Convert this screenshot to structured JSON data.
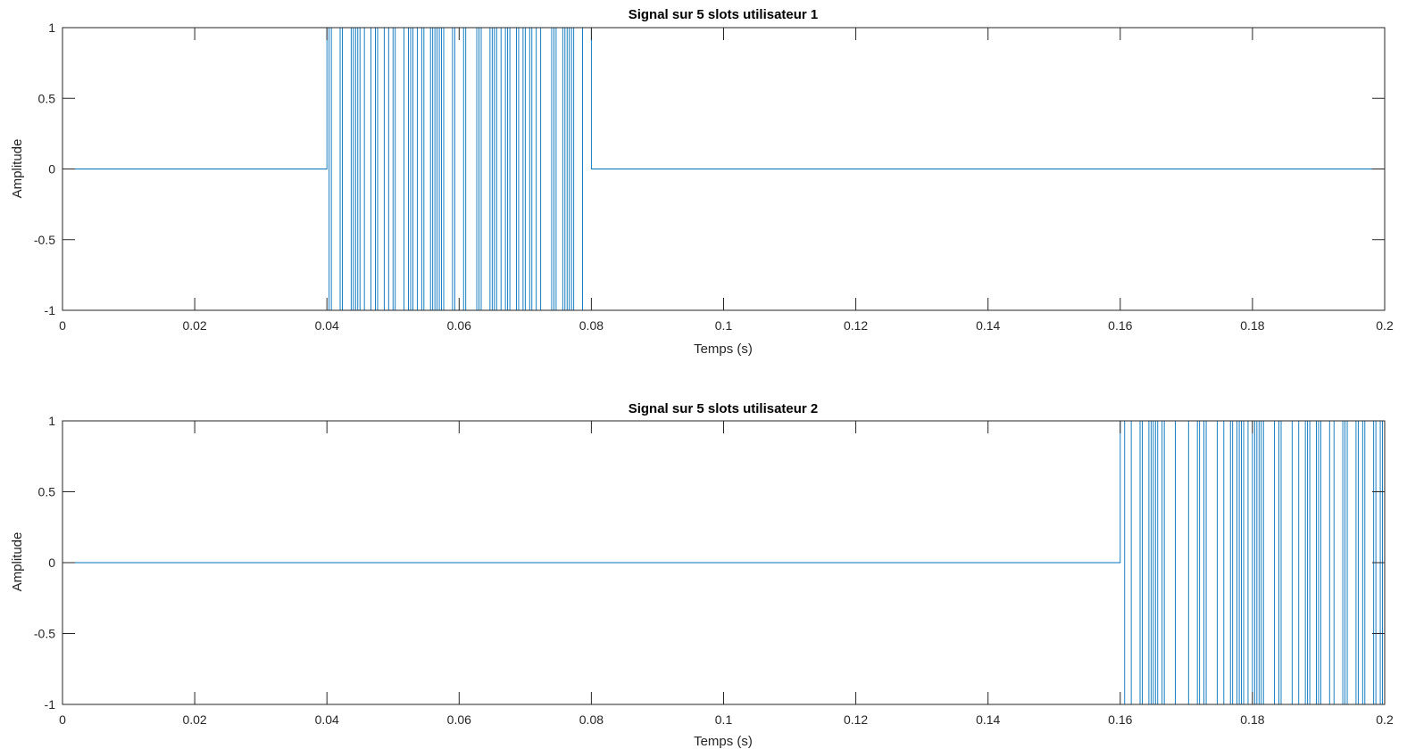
{
  "chart_data": [
    {
      "type": "line",
      "title": "Signal sur 5 slots utilisateur 1",
      "xlabel": "Temps (s)",
      "ylabel": "Amplitude",
      "xlim": [
        0,
        0.2
      ],
      "ylim": [
        -1,
        1
      ],
      "xticks": [
        "0",
        "0.02",
        "0.04",
        "0.06",
        "0.08",
        "0.1",
        "0.12",
        "0.14",
        "0.16",
        "0.18",
        "0.2"
      ],
      "yticks": [
        "-1",
        "-0.5",
        "0",
        "0.5",
        "1"
      ],
      "grid": false,
      "series_color": "#0072BD",
      "segments": [
        {
          "x_start": 0,
          "x_end": 0.04,
          "kind": "zero"
        },
        {
          "x_start": 0.04,
          "x_end": 0.08,
          "kind": "bipolar",
          "levels": [
            -1,
            1
          ]
        },
        {
          "x_start": 0.08,
          "x_end": 0.2,
          "kind": "zero"
        }
      ]
    },
    {
      "type": "line",
      "title": "Signal sur 5 slots utilisateur 2",
      "xlabel": "Temps (s)",
      "ylabel": "Amplitude",
      "xlim": [
        0,
        0.2
      ],
      "ylim": [
        -1,
        1
      ],
      "xticks": [
        "0",
        "0.02",
        "0.04",
        "0.06",
        "0.08",
        "0.1",
        "0.12",
        "0.14",
        "0.16",
        "0.18",
        "0.2"
      ],
      "yticks": [
        "-1",
        "-0.5",
        "0",
        "0.5",
        "1"
      ],
      "grid": false,
      "series_color": "#0072BD",
      "segments": [
        {
          "x_start": 0,
          "x_end": 0.16,
          "kind": "zero"
        },
        {
          "x_start": 0.16,
          "x_end": 0.2,
          "kind": "bipolar",
          "levels": [
            -1,
            1
          ]
        }
      ]
    }
  ]
}
